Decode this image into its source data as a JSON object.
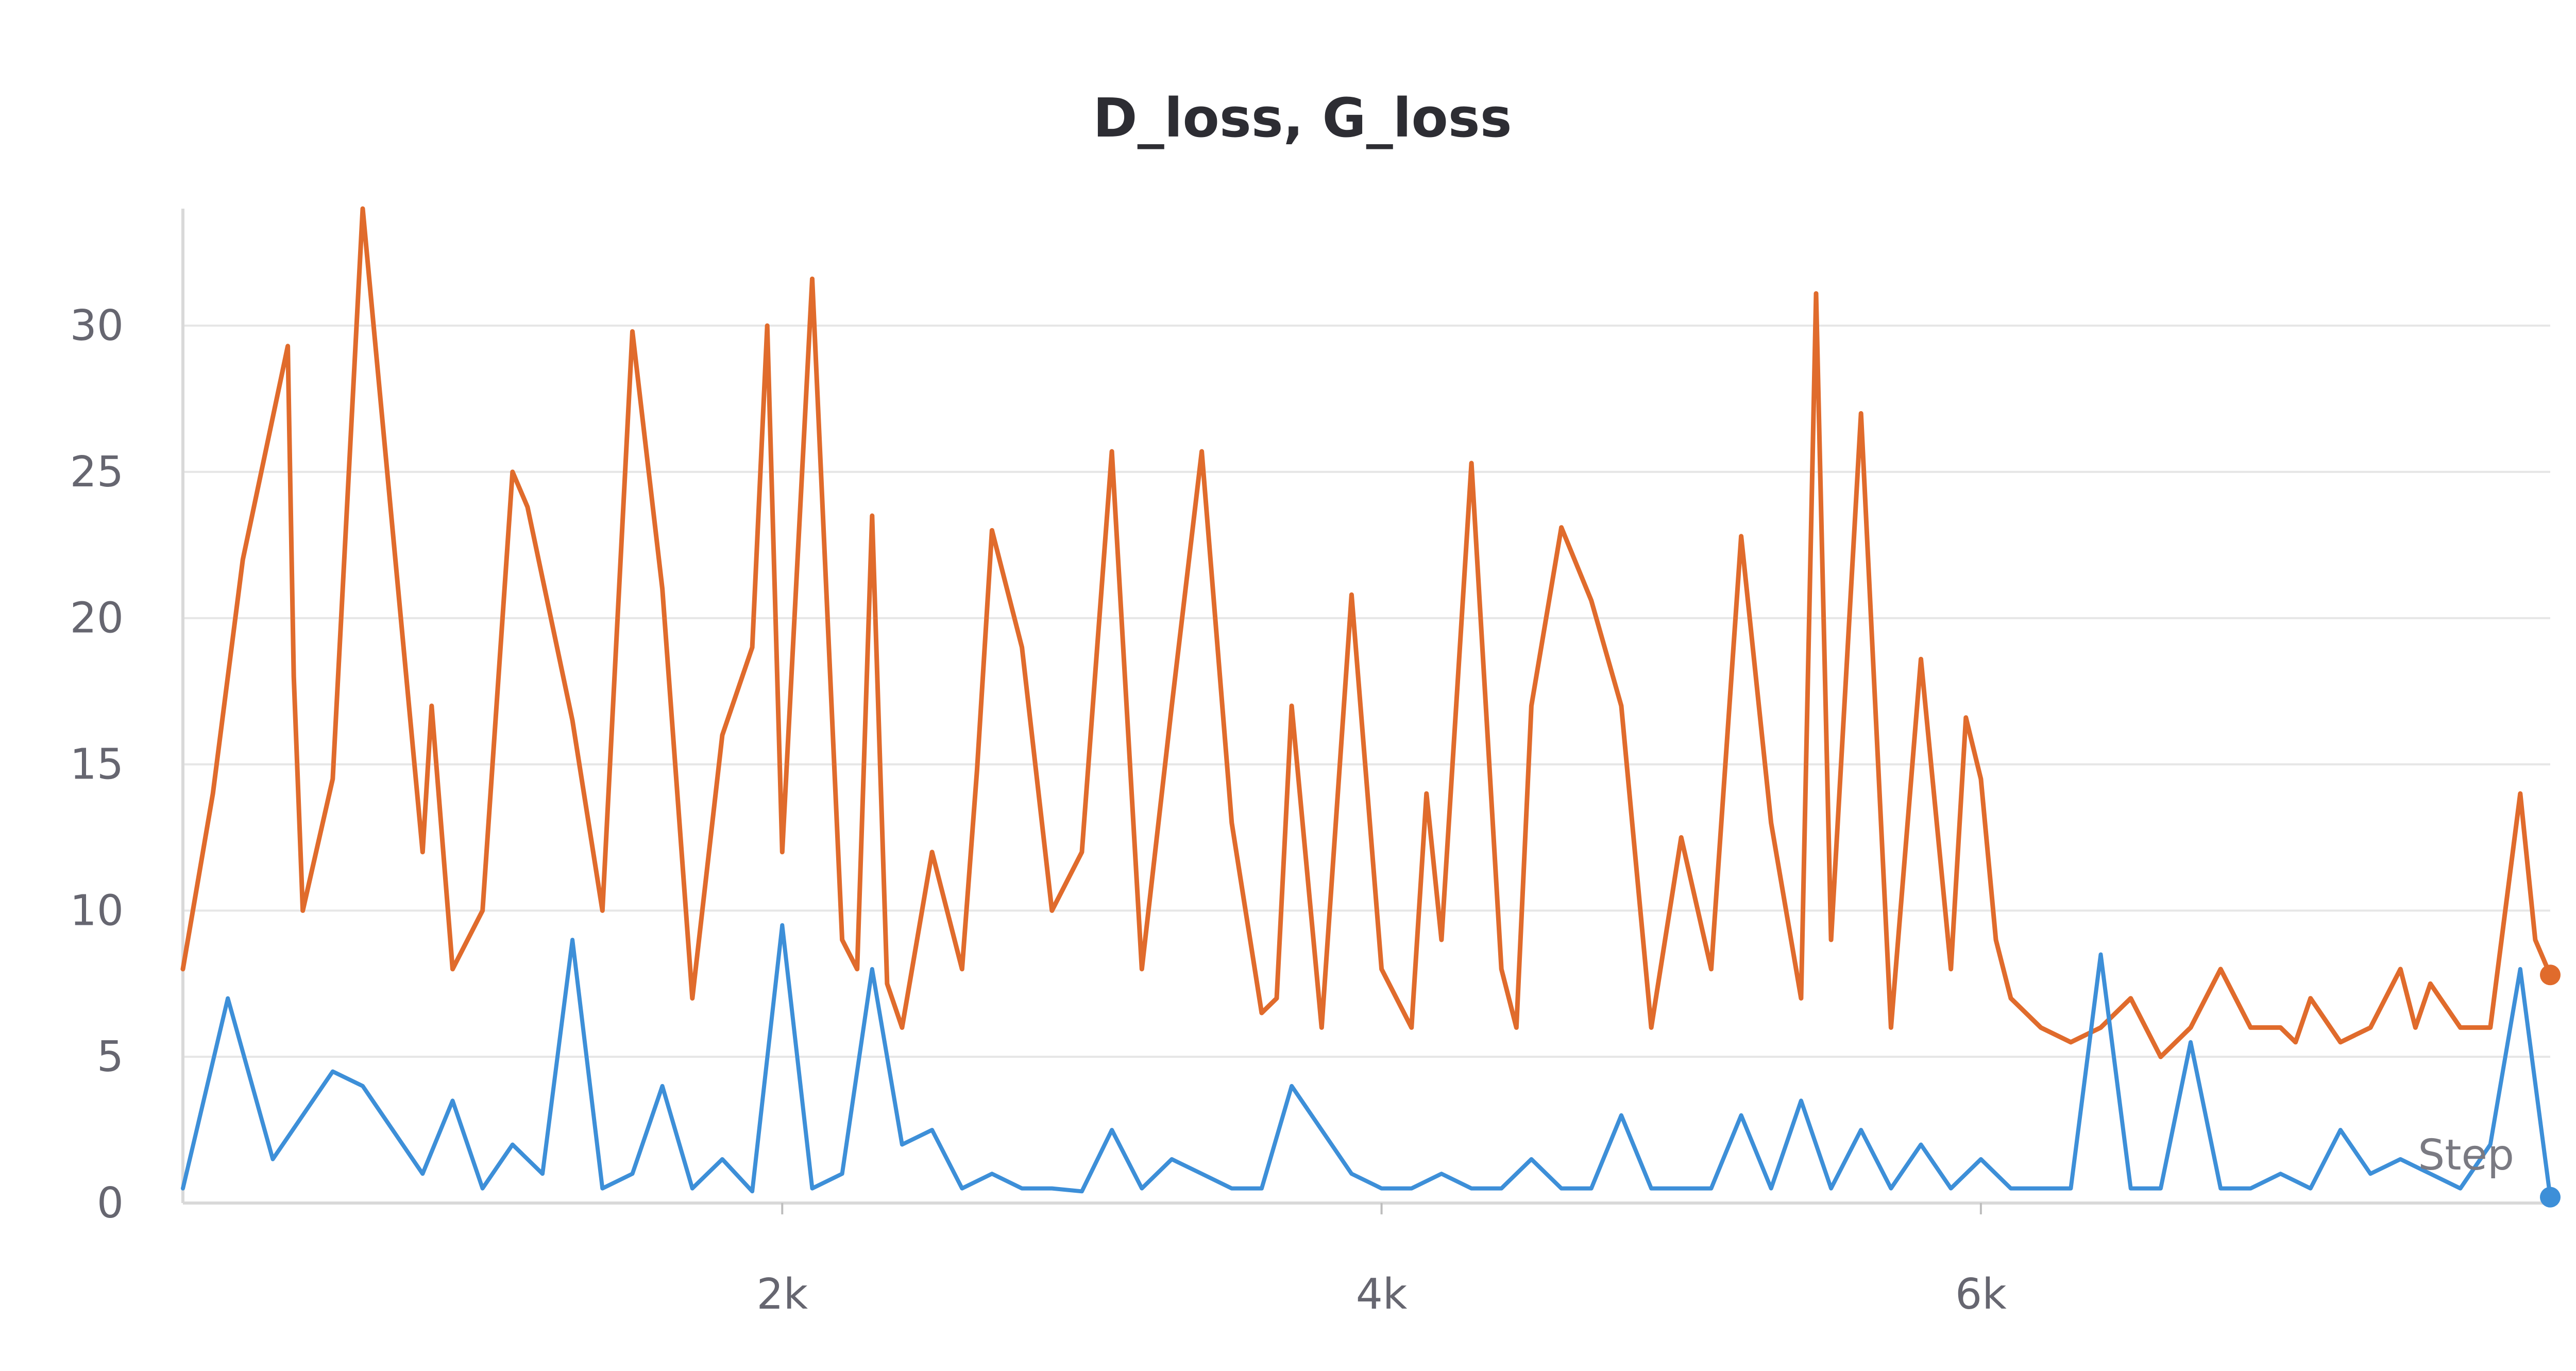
{
  "colors": {
    "background": "#ffffff",
    "title": "#2d2d33",
    "grid": "#e6e6e6",
    "tick_text": "#666670"
  },
  "chart_data": {
    "type": "line",
    "title": "D_loss, G_loss",
    "xlabel": "Step",
    "ylabel": "",
    "xlim": [
      0,
      7900
    ],
    "ylim": [
      0,
      34
    ],
    "yticks": [
      0,
      5,
      10,
      15,
      20,
      25,
      30
    ],
    "ytick_labels": [
      "0",
      "5",
      "10",
      "15",
      "20",
      "25",
      "30"
    ],
    "xticks": [
      2000,
      4000,
      6000
    ],
    "xtick_labels": [
      "2k",
      "4k",
      "6k"
    ],
    "grid": true,
    "legend": "none",
    "series": [
      {
        "color": "#e06b2c",
        "x": [
          0,
          100,
          200,
          350,
          370,
          400,
          500,
          600,
          800,
          830,
          900,
          1000,
          1100,
          1150,
          1300,
          1400,
          1500,
          1600,
          1700,
          1800,
          1900,
          1950,
          2000,
          2100,
          2200,
          2250,
          2300,
          2350,
          2400,
          2500,
          2600,
          2650,
          2700,
          2800,
          2900,
          3000,
          3100,
          3200,
          3300,
          3400,
          3500,
          3600,
          3650,
          3700,
          3800,
          3900,
          4000,
          4100,
          4150,
          4200,
          4300,
          4400,
          4450,
          4500,
          4600,
          4700,
          4800,
          4900,
          5000,
          5100,
          5200,
          5300,
          5400,
          5450,
          5500,
          5600,
          5700,
          5800,
          5900,
          5950,
          6000,
          6050,
          6100,
          6200,
          6300,
          6400,
          6500,
          6600,
          6700,
          6800,
          6900,
          7000,
          7050,
          7100,
          7200,
          7300,
          7400,
          7450,
          7500,
          7600,
          7700,
          7800,
          7850,
          7900
        ],
        "y": [
          8.0,
          14.0,
          22.0,
          29.3,
          18.0,
          10.0,
          14.5,
          34.0,
          12.0,
          17.0,
          8.0,
          10.0,
          25.0,
          23.8,
          16.5,
          10.0,
          29.8,
          21.0,
          7.0,
          16.0,
          19.0,
          30.0,
          12.0,
          31.6,
          9.0,
          8.0,
          23.5,
          7.5,
          6.0,
          12.0,
          8.0,
          14.8,
          23.0,
          19.0,
          10.0,
          12.0,
          25.7,
          8.0,
          17.0,
          25.7,
          13.0,
          6.5,
          7.0,
          17.0,
          6.0,
          20.8,
          8.0,
          6.0,
          14.0,
          9.0,
          25.3,
          8.0,
          6.0,
          17.0,
          23.1,
          20.6,
          17.0,
          6.0,
          12.5,
          8.0,
          22.8,
          13.0,
          7.0,
          31.1,
          9.0,
          27.0,
          6.0,
          18.6,
          8.0,
          16.6,
          14.5,
          9.0,
          7.0,
          6.0,
          5.5,
          6.0,
          7.0,
          5.0,
          6.0,
          8.0,
          6.0,
          6.0,
          5.5,
          7.0,
          5.5,
          6.0,
          8.0,
          6.0,
          7.5,
          6.0,
          6.0,
          14.0,
          9.0,
          7.8
        ]
      },
      {
        "color": "#3d8fd8",
        "x": [
          0,
          150,
          300,
          500,
          600,
          800,
          900,
          1000,
          1100,
          1200,
          1300,
          1400,
          1500,
          1600,
          1700,
          1800,
          1900,
          2000,
          2100,
          2200,
          2300,
          2400,
          2500,
          2600,
          2700,
          2800,
          2900,
          3000,
          3100,
          3200,
          3300,
          3400,
          3500,
          3600,
          3700,
          3800,
          3900,
          4000,
          4100,
          4200,
          4300,
          4400,
          4500,
          4600,
          4700,
          4800,
          4900,
          5000,
          5100,
          5200,
          5300,
          5400,
          5500,
          5600,
          5700,
          5800,
          5900,
          6000,
          6100,
          6200,
          6300,
          6400,
          6500,
          6600,
          6700,
          6800,
          6900,
          7000,
          7100,
          7200,
          7300,
          7400,
          7500,
          7600,
          7700,
          7800,
          7900
        ],
        "y": [
          0.5,
          7.0,
          1.5,
          4.5,
          4.0,
          1.0,
          3.5,
          0.5,
          2.0,
          1.0,
          9.0,
          0.5,
          1.0,
          4.0,
          0.5,
          1.5,
          0.4,
          9.5,
          0.5,
          1.0,
          8.0,
          2.0,
          2.5,
          0.5,
          1.0,
          0.5,
          0.5,
          0.4,
          2.5,
          0.5,
          1.5,
          1.0,
          0.5,
          0.5,
          4.0,
          2.5,
          1.0,
          0.5,
          0.5,
          1.0,
          0.5,
          0.5,
          1.5,
          0.5,
          0.5,
          3.0,
          0.5,
          0.5,
          0.5,
          3.0,
          0.5,
          3.5,
          0.5,
          2.5,
          0.5,
          2.0,
          0.5,
          1.5,
          0.5,
          0.5,
          0.5,
          8.5,
          0.5,
          0.5,
          5.5,
          0.5,
          0.5,
          1.0,
          0.5,
          2.5,
          1.0,
          1.5,
          1.0,
          0.5,
          2.0,
          8.0,
          0.2
        ]
      }
    ]
  }
}
